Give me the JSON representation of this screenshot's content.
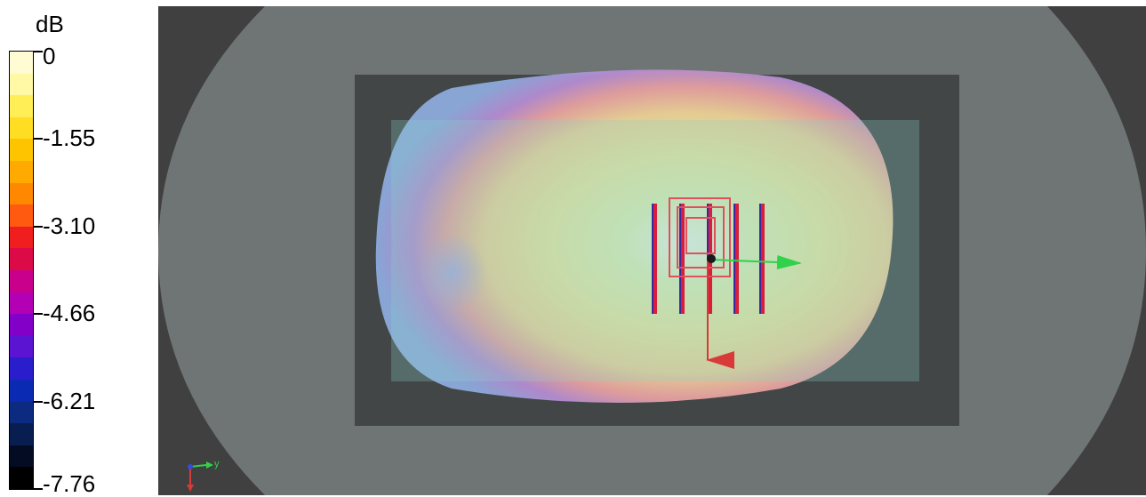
{
  "legend": {
    "unit": "dB",
    "tick_labels": [
      "0",
      "-1.55",
      "-3.10",
      "-4.66",
      "-6.21",
      "-7.76"
    ],
    "colors": [
      "#fffbd2",
      "#fff8a4",
      "#ffee55",
      "#ffdd22",
      "#ffc400",
      "#ffaa00",
      "#ff8800",
      "#ff5a10",
      "#f01e1e",
      "#dc0a46",
      "#c8008c",
      "#b400b4",
      "#8200c8",
      "#5a14d2",
      "#2a1ecc",
      "#0a2ab4",
      "#0c2a80",
      "#081e50",
      "#040c24",
      "#000000"
    ]
  },
  "viewport": {
    "background": "#404040",
    "axis_triad_label": "y"
  }
}
